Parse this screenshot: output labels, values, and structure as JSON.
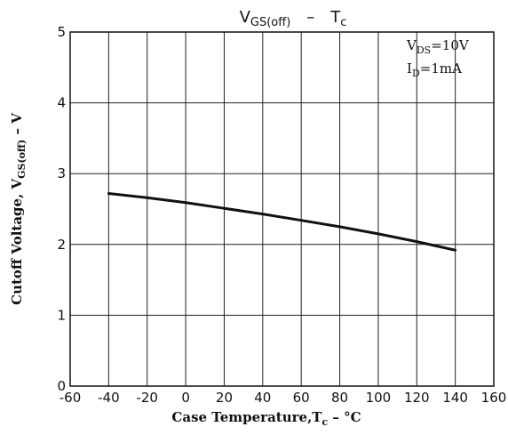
{
  "chart_data": {
    "type": "line",
    "title": {
      "main": "V",
      "sub": "GS(off)",
      "sep": "–",
      "main2": "T",
      "sub2": "c"
    },
    "xlabel": {
      "text": "Case Temperature,T",
      "sub": "c",
      "unit": " – °C"
    },
    "ylabel": {
      "text": "Cutoff Voltage, V",
      "sub": "GS(off)",
      "unit": " – V"
    },
    "xlim": [
      -60,
      160
    ],
    "ylim": [
      0,
      5
    ],
    "x_ticks": [
      "-60",
      "-40",
      "-20",
      "0",
      "20",
      "40",
      "60",
      "80",
      "100",
      "120",
      "140",
      "160"
    ],
    "y_ticks": [
      "0",
      "1",
      "2",
      "3",
      "4",
      "5"
    ],
    "grid": true,
    "annotations": [
      {
        "main": "V",
        "sub": "DS",
        "rest": "=10V"
      },
      {
        "main": "I",
        "sub": "D",
        "rest": "=1mA"
      }
    ],
    "series": [
      {
        "x": [
          -40,
          -20,
          0,
          20,
          40,
          60,
          80,
          100,
          120,
          140
        ],
        "y": [
          2.72,
          2.66,
          2.59,
          2.51,
          2.43,
          2.34,
          2.25,
          2.15,
          2.04,
          1.92
        ]
      }
    ]
  }
}
